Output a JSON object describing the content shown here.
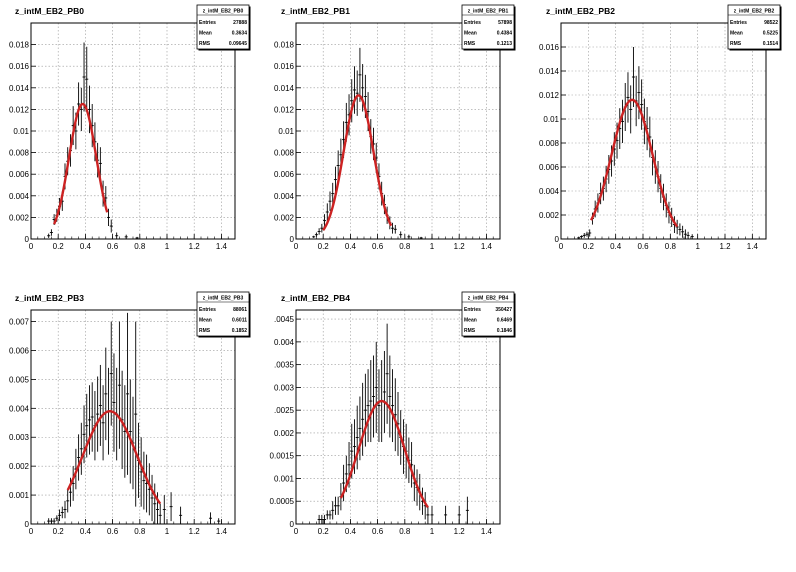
{
  "chart_data": [
    {
      "type": "histogram",
      "title": "z_intM_EB2_PB0",
      "stats": {
        "name": "z_intM_EB2_PB0",
        "entries": "27888",
        "mean": "0.3634",
        "rms": "0.09645"
      },
      "xlim": [
        0,
        1.5
      ],
      "ylim": [
        0,
        0.02
      ],
      "xticks": [
        "0",
        "0.2",
        "0.4",
        "0.6",
        "0.8",
        "1",
        "1.2",
        "1.4"
      ],
      "yticks": [
        "0",
        "0.002",
        "0.004",
        "0.006",
        "0.008",
        "0.01",
        "0.012",
        "0.014",
        "0.016",
        "0.018"
      ],
      "ytick_values": [
        0,
        0.002,
        0.004,
        0.006,
        0.008,
        0.01,
        0.012,
        0.014,
        0.016,
        0.018
      ],
      "grid": true,
      "fit": {
        "type": "gaussian",
        "amplitude": 0.0125,
        "mu": 0.38,
        "sigma": 0.1,
        "range": [
          0.17,
          0.56
        ],
        "color": "#cc2222"
      },
      "points": [
        [
          0.13,
          0.0003
        ],
        [
          0.15,
          0.0006
        ],
        [
          0.17,
          0.0018
        ],
        [
          0.19,
          0.0022
        ],
        [
          0.21,
          0.003
        ],
        [
          0.23,
          0.0035
        ],
        [
          0.25,
          0.0058
        ],
        [
          0.27,
          0.0072
        ],
        [
          0.29,
          0.0082
        ],
        [
          0.31,
          0.0105
        ],
        [
          0.33,
          0.01
        ],
        [
          0.35,
          0.0125
        ],
        [
          0.37,
          0.012
        ],
        [
          0.39,
          0.015
        ],
        [
          0.41,
          0.0148
        ],
        [
          0.43,
          0.012
        ],
        [
          0.45,
          0.0105
        ],
        [
          0.47,
          0.009
        ],
        [
          0.49,
          0.0073
        ],
        [
          0.51,
          0.007
        ],
        [
          0.53,
          0.0042
        ],
        [
          0.55,
          0.0038
        ],
        [
          0.57,
          0.002
        ],
        [
          0.59,
          0.0012
        ],
        [
          0.63,
          0.0003
        ],
        [
          0.7,
          0.0002
        ],
        [
          0.78,
          0.0001
        ]
      ],
      "errors": [
        0.0002,
        0.0003,
        0.0005,
        0.0006,
        0.0008,
        0.0009,
        0.0012,
        0.0013,
        0.0015,
        0.0018,
        0.0017,
        0.002,
        0.002,
        0.0032,
        0.003,
        0.0022,
        0.002,
        0.0018,
        0.0016,
        0.0015,
        0.0012,
        0.0011,
        0.0008,
        0.0006,
        0.0003,
        0.0002,
        0.0001
      ]
    },
    {
      "type": "histogram",
      "title": "z_intM_EB2_PB1",
      "stats": {
        "name": "z_intM_EB2_PB1",
        "entries": "57898",
        "mean": "0.4384",
        "rms": "0.1213"
      },
      "xlim": [
        0,
        1.5
      ],
      "ylim": [
        0,
        0.02
      ],
      "xticks": [
        "0",
        "0.2",
        "0.4",
        "0.6",
        "0.8",
        "1",
        "1.2",
        "1.4"
      ],
      "yticks": [
        "0",
        "0.002",
        "0.004",
        "0.006",
        "0.008",
        "0.01",
        "0.012",
        "0.014",
        "0.016",
        "0.018"
      ],
      "ytick_values": [
        0,
        0.002,
        0.004,
        0.006,
        0.008,
        0.01,
        0.012,
        0.014,
        0.016,
        0.018
      ],
      "grid": true,
      "fit": {
        "type": "gaussian",
        "amplitude": 0.0133,
        "mu": 0.46,
        "sigma": 0.11,
        "range": [
          0.2,
          0.7
        ],
        "color": "#cc2222"
      },
      "points": [
        [
          0.13,
          0.0002
        ],
        [
          0.15,
          0.0004
        ],
        [
          0.17,
          0.0007
        ],
        [
          0.19,
          0.001
        ],
        [
          0.21,
          0.0017
        ],
        [
          0.23,
          0.0025
        ],
        [
          0.25,
          0.0035
        ],
        [
          0.27,
          0.0042
        ],
        [
          0.29,
          0.0055
        ],
        [
          0.31,
          0.0068
        ],
        [
          0.33,
          0.0078
        ],
        [
          0.35,
          0.0092
        ],
        [
          0.37,
          0.0108
        ],
        [
          0.39,
          0.0115
        ],
        [
          0.41,
          0.0128
        ],
        [
          0.43,
          0.0138
        ],
        [
          0.45,
          0.0135
        ],
        [
          0.47,
          0.0152
        ],
        [
          0.49,
          0.014
        ],
        [
          0.51,
          0.0132
        ],
        [
          0.53,
          0.0118
        ],
        [
          0.55,
          0.0095
        ],
        [
          0.57,
          0.0088
        ],
        [
          0.59,
          0.0075
        ],
        [
          0.61,
          0.0058
        ],
        [
          0.63,
          0.0042
        ],
        [
          0.65,
          0.0032
        ],
        [
          0.67,
          0.0022
        ],
        [
          0.69,
          0.0015
        ],
        [
          0.71,
          0.001
        ],
        [
          0.73,
          0.0009
        ],
        [
          0.77,
          0.0004
        ],
        [
          0.83,
          0.0002
        ],
        [
          0.92,
          0.0001
        ]
      ],
      "errors": [
        0.0001,
        0.0002,
        0.0003,
        0.0004,
        0.0006,
        0.0008,
        0.0009,
        0.001,
        0.0012,
        0.0014,
        0.0015,
        0.0017,
        0.0018,
        0.0019,
        0.002,
        0.0022,
        0.0021,
        0.0025,
        0.0022,
        0.002,
        0.0018,
        0.0016,
        0.0015,
        0.0014,
        0.0012,
        0.0011,
        0.0009,
        0.0008,
        0.0006,
        0.0005,
        0.0004,
        0.0003,
        0.0002,
        0.0001
      ]
    },
    {
      "type": "histogram",
      "title": "z_intM_EB2_PB2",
      "stats": {
        "name": "z_intM_EB2_PB2",
        "entries": "98522",
        "mean": "0.5225",
        "rms": "0.1514"
      },
      "xlim": [
        0,
        1.5
      ],
      "ylim": [
        0,
        0.018
      ],
      "xticks": [
        "0",
        "0.2",
        "0.4",
        "0.6",
        "0.8",
        "1",
        "1.2",
        "1.4"
      ],
      "yticks": [
        "0",
        "0.002",
        "0.004",
        "0.006",
        "0.008",
        "0.01",
        "0.012",
        "0.014",
        "0.016"
      ],
      "ytick_values": [
        0,
        0.002,
        0.004,
        0.006,
        0.008,
        0.01,
        0.012,
        0.014,
        0.016
      ],
      "grid": true,
      "fit": {
        "type": "gaussian",
        "amplitude": 0.0116,
        "mu": 0.52,
        "sigma": 0.15,
        "range": [
          0.22,
          0.85
        ],
        "color": "#cc2222"
      },
      "points": [
        [
          0.13,
          0.0001
        ],
        [
          0.15,
          0.0002
        ],
        [
          0.17,
          0.0003
        ],
        [
          0.19,
          0.0004
        ],
        [
          0.21,
          0.0005
        ],
        [
          0.23,
          0.0017
        ],
        [
          0.25,
          0.0025
        ],
        [
          0.27,
          0.003
        ],
        [
          0.29,
          0.0038
        ],
        [
          0.31,
          0.0042
        ],
        [
          0.33,
          0.005
        ],
        [
          0.35,
          0.0058
        ],
        [
          0.37,
          0.0065
        ],
        [
          0.39,
          0.0075
        ],
        [
          0.41,
          0.0082
        ],
        [
          0.43,
          0.0092
        ],
        [
          0.45,
          0.0098
        ],
        [
          0.47,
          0.011
        ],
        [
          0.49,
          0.0118
        ],
        [
          0.51,
          0.0108
        ],
        [
          0.53,
          0.0135
        ],
        [
          0.55,
          0.0115
        ],
        [
          0.57,
          0.0122
        ],
        [
          0.59,
          0.0112
        ],
        [
          0.61,
          0.0098
        ],
        [
          0.63,
          0.0092
        ],
        [
          0.65,
          0.0085
        ],
        [
          0.67,
          0.0068
        ],
        [
          0.69,
          0.006
        ],
        [
          0.71,
          0.0052
        ],
        [
          0.73,
          0.0042
        ],
        [
          0.75,
          0.0035
        ],
        [
          0.77,
          0.0028
        ],
        [
          0.79,
          0.0022
        ],
        [
          0.81,
          0.0018
        ],
        [
          0.83,
          0.0012
        ],
        [
          0.85,
          0.001
        ],
        [
          0.87,
          0.0008
        ],
        [
          0.89,
          0.0006
        ],
        [
          0.91,
          0.0004
        ],
        [
          0.93,
          0.0003
        ],
        [
          0.96,
          0.0002
        ]
      ],
      "errors": [
        0.0001,
        0.0001,
        0.0002,
        0.0002,
        0.0003,
        0.0005,
        0.0007,
        0.0008,
        0.0009,
        0.001,
        0.0011,
        0.0012,
        0.0013,
        0.0014,
        0.0015,
        0.0017,
        0.0018,
        0.002,
        0.0021,
        0.002,
        0.0025,
        0.0021,
        0.0022,
        0.0021,
        0.0019,
        0.0018,
        0.0017,
        0.0015,
        0.0014,
        0.0013,
        0.0012,
        0.0011,
        0.001,
        0.0009,
        0.0008,
        0.0007,
        0.0006,
        0.0005,
        0.0005,
        0.0004,
        0.0003,
        0.0002
      ]
    },
    {
      "type": "histogram",
      "title": "z_intM_EB2_PB3",
      "stats": {
        "name": "z_intM_EB2_PB3",
        "entries": "88061",
        "mean": "0.6011",
        "rms": "0.1852"
      },
      "xlim": [
        0,
        1.5
      ],
      "ylim": [
        0,
        0.0074
      ],
      "xticks": [
        "0",
        "0.2",
        "0.4",
        "0.6",
        "0.8",
        "1",
        "1.2",
        "1.4"
      ],
      "yticks": [
        "0",
        "0.001",
        "0.002",
        "0.003",
        "0.004",
        "0.005",
        "0.006",
        "0.007"
      ],
      "ytick_values": [
        0,
        0.001,
        0.002,
        0.003,
        0.004,
        0.005,
        0.006,
        0.007
      ],
      "grid": true,
      "fit": {
        "type": "gaussian",
        "amplitude": 0.0039,
        "mu": 0.58,
        "sigma": 0.2,
        "range": [
          0.27,
          0.95
        ],
        "color": "#cc2222"
      },
      "points": [
        [
          0.13,
          0.0001
        ],
        [
          0.15,
          0.0001
        ],
        [
          0.17,
          0.0001
        ],
        [
          0.19,
          0.0002
        ],
        [
          0.21,
          0.0003
        ],
        [
          0.23,
          0.0004
        ],
        [
          0.25,
          0.0005
        ],
        [
          0.27,
          0.0008
        ],
        [
          0.29,
          0.0011
        ],
        [
          0.31,
          0.0014
        ],
        [
          0.33,
          0.0019
        ],
        [
          0.35,
          0.0023
        ],
        [
          0.37,
          0.0026
        ],
        [
          0.39,
          0.0031
        ],
        [
          0.41,
          0.0034
        ],
        [
          0.43,
          0.0036
        ],
        [
          0.45,
          0.0037
        ],
        [
          0.47,
          0.0034
        ],
        [
          0.49,
          0.0038
        ],
        [
          0.51,
          0.0041
        ],
        [
          0.53,
          0.0035
        ],
        [
          0.55,
          0.0045
        ],
        [
          0.57,
          0.0039
        ],
        [
          0.59,
          0.0052
        ],
        [
          0.61,
          0.0042
        ],
        [
          0.63,
          0.0038
        ],
        [
          0.65,
          0.0048
        ],
        [
          0.67,
          0.0036
        ],
        [
          0.69,
          0.0032
        ],
        [
          0.71,
          0.0045
        ],
        [
          0.73,
          0.0032
        ],
        [
          0.75,
          0.0028
        ],
        [
          0.77,
          0.0038
        ],
        [
          0.79,
          0.0022
        ],
        [
          0.81,
          0.0018
        ],
        [
          0.83,
          0.0015
        ],
        [
          0.85,
          0.0014
        ],
        [
          0.87,
          0.0012
        ],
        [
          0.89,
          0.0009
        ],
        [
          0.91,
          0.0007
        ],
        [
          0.93,
          0.0005
        ],
        [
          0.95,
          0.0003
        ],
        [
          0.98,
          0.0005
        ],
        [
          1.03,
          0.0006
        ],
        [
          1.1,
          0.0003
        ],
        [
          1.32,
          0.0002
        ],
        [
          1.38,
          0.0001
        ]
      ],
      "errors": [
        0.0001,
        0.0001,
        0.0001,
        0.0001,
        0.0002,
        0.0002,
        0.0003,
        0.0004,
        0.0005,
        0.0006,
        0.0007,
        0.0008,
        0.0009,
        0.001,
        0.0011,
        0.0012,
        0.0012,
        0.0012,
        0.0013,
        0.0014,
        0.0013,
        0.0016,
        0.0015,
        0.0018,
        0.0017,
        0.0016,
        0.0022,
        0.0017,
        0.0016,
        0.0028,
        0.0018,
        0.0016,
        0.0032,
        0.0013,
        0.0012,
        0.001,
        0.001,
        0.0009,
        0.0008,
        0.0007,
        0.0006,
        0.0004,
        0.0005,
        0.0005,
        0.0003,
        0.0002,
        0.0001
      ]
    },
    {
      "type": "histogram",
      "title": "z_intM_EB2_PB4",
      "stats": {
        "name": "z_intM_EB2_PB4",
        "entries": "350427",
        "mean": "0.6469",
        "rms": "0.1846"
      },
      "xlim": [
        0,
        1.5
      ],
      "ylim": [
        0,
        0.0047
      ],
      "xticks": [
        "0",
        "0.2",
        "0.4",
        "0.6",
        "0.8",
        "1",
        "1.2",
        "1.4"
      ],
      "yticks": [
        "0",
        "0.0005",
        "0.001",
        "0.0015",
        "0.002",
        ".0025",
        "0.003",
        ".0035",
        "0.004",
        ".0045"
      ],
      "ytick_values": [
        0,
        0.0005,
        0.001,
        0.0015,
        0.002,
        0.0025,
        0.003,
        0.0035,
        0.004,
        0.0045
      ],
      "grid": true,
      "fit": {
        "type": "gaussian",
        "amplitude": 0.0027,
        "mu": 0.63,
        "sigma": 0.17,
        "range": [
          0.33,
          0.97
        ],
        "color": "#cc2222"
      },
      "points": [
        [
          0.17,
          0.0001
        ],
        [
          0.19,
          0.0001
        ],
        [
          0.21,
          0.0001
        ],
        [
          0.23,
          0.0002
        ],
        [
          0.25,
          0.0002
        ],
        [
          0.27,
          0.0003
        ],
        [
          0.29,
          0.0004
        ],
        [
          0.31,
          0.0004
        ],
        [
          0.33,
          0.0006
        ],
        [
          0.35,
          0.0009
        ],
        [
          0.37,
          0.0011
        ],
        [
          0.39,
          0.0013
        ],
        [
          0.41,
          0.0016
        ],
        [
          0.43,
          0.0017
        ],
        [
          0.45,
          0.0019
        ],
        [
          0.47,
          0.0021
        ],
        [
          0.49,
          0.0023
        ],
        [
          0.51,
          0.0025
        ],
        [
          0.53,
          0.0026
        ],
        [
          0.55,
          0.0027
        ],
        [
          0.57,
          0.0028
        ],
        [
          0.59,
          0.003
        ],
        [
          0.61,
          0.0026
        ],
        [
          0.63,
          0.0027
        ],
        [
          0.65,
          0.0029
        ],
        [
          0.67,
          0.0033
        ],
        [
          0.69,
          0.0028
        ],
        [
          0.71,
          0.0026
        ],
        [
          0.73,
          0.0024
        ],
        [
          0.75,
          0.0022
        ],
        [
          0.77,
          0.0019
        ],
        [
          0.79,
          0.0017
        ],
        [
          0.81,
          0.0016
        ],
        [
          0.83,
          0.0014
        ],
        [
          0.85,
          0.0013
        ],
        [
          0.87,
          0.0009
        ],
        [
          0.89,
          0.0008
        ],
        [
          0.91,
          0.0007
        ],
        [
          0.93,
          0.0005
        ],
        [
          0.95,
          0.0004
        ],
        [
          0.97,
          0.0002
        ],
        [
          1.0,
          0.0002
        ],
        [
          1.1,
          0.0002
        ],
        [
          1.2,
          0.0002
        ],
        [
          1.26,
          0.0003
        ]
      ],
      "errors": [
        0.0001,
        0.0001,
        0.0001,
        0.0001,
        0.0001,
        0.0002,
        0.0002,
        0.0002,
        0.0003,
        0.0004,
        0.0004,
        0.0005,
        0.0006,
        0.0006,
        0.0007,
        0.0007,
        0.0008,
        0.0008,
        0.0008,
        0.0009,
        0.0009,
        0.001,
        0.0008,
        0.0009,
        0.0009,
        0.0011,
        0.0009,
        0.0008,
        0.0008,
        0.0007,
        0.0006,
        0.0006,
        0.0006,
        0.0005,
        0.0005,
        0.0004,
        0.0004,
        0.0004,
        0.0003,
        0.0003,
        0.0002,
        0.0002,
        0.0002,
        0.0002,
        0.0003
      ]
    }
  ]
}
